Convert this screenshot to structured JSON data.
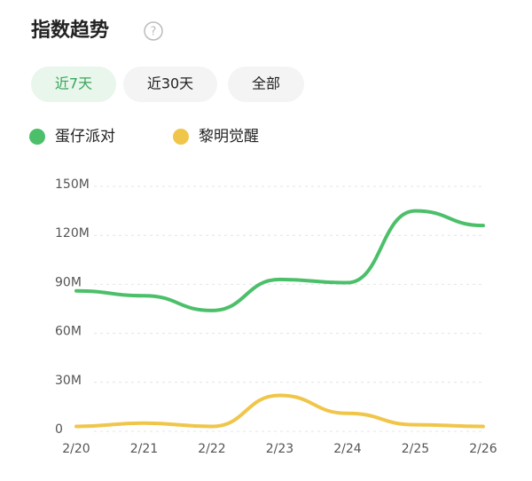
{
  "header": {
    "title": "指数趋势"
  },
  "tabs": [
    "近7天",
    "近30天",
    "全部"
  ],
  "chart_data": {
    "type": "line",
    "categories": [
      "2/20",
      "2/21",
      "2/22",
      "2/23",
      "2/24",
      "2/25",
      "2/26"
    ],
    "series": [
      {
        "name": "蛋仔派对",
        "color": "#4cbf6a",
        "values": [
          86,
          83,
          74,
          93,
          91,
          135,
          126
        ]
      },
      {
        "name": "黎明觉醒",
        "color": "#f0c64a",
        "values": [
          3,
          5,
          3,
          22,
          11,
          4,
          3
        ]
      }
    ],
    "ylim": [
      0,
      150
    ],
    "yticks": [
      0,
      {
        "value": 30,
        "label": "30M"
      },
      {
        "value": 60,
        "label": "60M"
      },
      {
        "value": 90,
        "label": "90M"
      },
      {
        "value": 120,
        "label": "120M"
      },
      {
        "value": 150,
        "label": "150M"
      }
    ],
    "grid": true
  }
}
